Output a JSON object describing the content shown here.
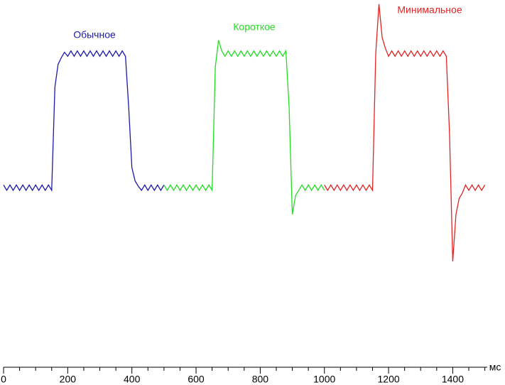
{
  "chart_data": {
    "type": "line",
    "x_label": "мс",
    "xlim": [
      0,
      1500
    ],
    "ylim": [
      -134,
      140
    ],
    "xticks": [
      0,
      200,
      400,
      600,
      800,
      1000,
      1200,
      1400
    ],
    "xminorticks": [
      50,
      100,
      150,
      250,
      300,
      350,
      450,
      500,
      550,
      650,
      700,
      750,
      850,
      900,
      950,
      1050,
      1100,
      1150,
      1250,
      1300,
      1350,
      1450,
      1500
    ],
    "series": [
      {
        "name": "Обычное",
        "color": "#1a1aa8",
        "x": [
          0,
          10,
          20,
          30,
          40,
          50,
          60,
          70,
          80,
          90,
          100,
          110,
          120,
          130,
          140,
          150,
          160,
          170,
          180,
          190,
          200,
          210,
          220,
          230,
          240,
          250,
          260,
          270,
          280,
          290,
          300,
          310,
          320,
          330,
          340,
          350,
          360,
          370,
          380,
          390,
          400,
          410,
          420,
          430,
          440,
          450,
          460,
          470,
          480,
          490,
          500
        ],
        "values": [
          2,
          -2,
          2,
          -2,
          2,
          -2,
          2,
          -2,
          2,
          -2,
          2,
          -2,
          2,
          -2,
          2,
          -2,
          75,
          92,
          97,
          101,
          98,
          102,
          98,
          102,
          98,
          102,
          98,
          102,
          98,
          102,
          98,
          102,
          98,
          102,
          98,
          102,
          98,
          102,
          98,
          60,
          15,
          5,
          1,
          -2,
          2,
          -2,
          2,
          -2,
          2,
          -2,
          2
        ]
      },
      {
        "name": "Короткое",
        "color": "#22dd22",
        "x": [
          500,
          510,
          520,
          530,
          540,
          550,
          560,
          570,
          580,
          590,
          600,
          610,
          620,
          630,
          640,
          650,
          660,
          670,
          680,
          690,
          700,
          710,
          720,
          730,
          740,
          750,
          760,
          770,
          780,
          790,
          800,
          810,
          820,
          830,
          840,
          850,
          860,
          870,
          880,
          890,
          900,
          910,
          920,
          930,
          940,
          950,
          960,
          970,
          980,
          990,
          1000
        ],
        "values": [
          2,
          -2,
          2,
          -2,
          2,
          -2,
          2,
          -2,
          2,
          -2,
          2,
          -2,
          2,
          -2,
          2,
          -2,
          90,
          110,
          102,
          98,
          102,
          98,
          102,
          98,
          102,
          98,
          102,
          98,
          102,
          98,
          102,
          98,
          102,
          98,
          102,
          98,
          102,
          98,
          102,
          60,
          -20,
          -6,
          -2,
          2,
          -2,
          2,
          -2,
          2,
          -2,
          2,
          -2
        ]
      },
      {
        "name": "Минимальное",
        "color": "#e02424",
        "x": [
          1000,
          1010,
          1020,
          1030,
          1040,
          1050,
          1060,
          1070,
          1080,
          1090,
          1100,
          1110,
          1120,
          1130,
          1140,
          1150,
          1160,
          1170,
          1180,
          1190,
          1200,
          1210,
          1220,
          1230,
          1240,
          1250,
          1260,
          1270,
          1280,
          1290,
          1300,
          1310,
          1320,
          1330,
          1340,
          1350,
          1360,
          1370,
          1380,
          1390,
          1400,
          1410,
          1420,
          1430,
          1440,
          1450,
          1460,
          1470,
          1480,
          1490,
          1500
        ],
        "values": [
          2,
          -2,
          2,
          -2,
          2,
          -2,
          2,
          -2,
          2,
          -2,
          2,
          -2,
          2,
          -2,
          2,
          -2,
          100,
          137,
          112,
          104,
          98,
          102,
          98,
          102,
          98,
          102,
          98,
          102,
          98,
          102,
          98,
          102,
          98,
          102,
          98,
          102,
          98,
          102,
          98,
          40,
          -55,
          -20,
          -8,
          -4,
          2,
          -2,
          2,
          -2,
          2,
          -2,
          2
        ]
      }
    ]
  }
}
